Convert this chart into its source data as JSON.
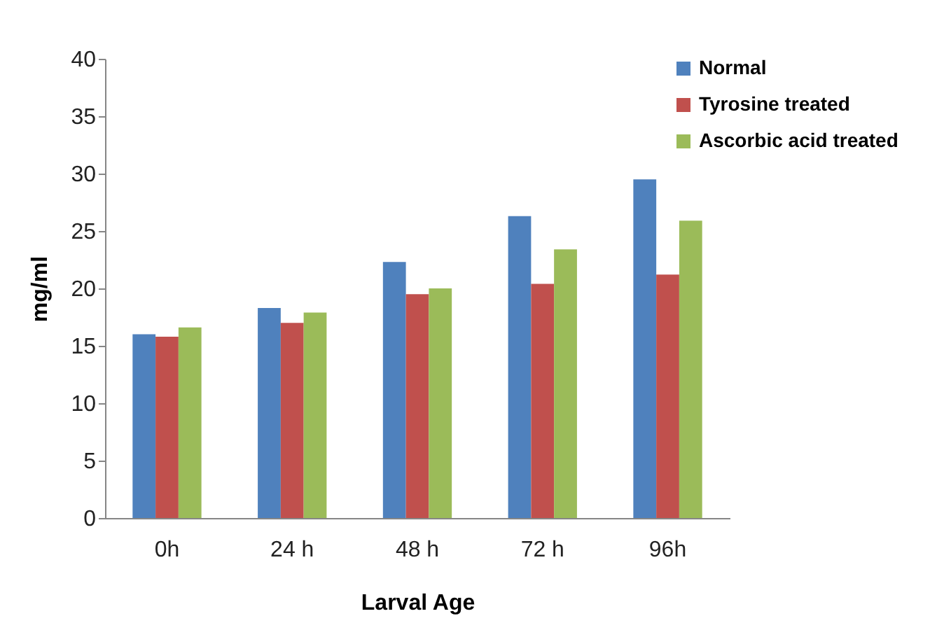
{
  "chart_data": {
    "type": "bar",
    "xlabel": "Larval Age",
    "ylabel": "mg/ml",
    "categories": [
      "0h",
      "24 h",
      "48 h",
      "72 h",
      "96h"
    ],
    "series": [
      {
        "name": "Normal",
        "color": "#4f81bd",
        "values": [
          16,
          18.3,
          22.3,
          26.3,
          29.5
        ]
      },
      {
        "name": "Tyrosine treated",
        "color": "#c0504d",
        "values": [
          15.8,
          17,
          19.5,
          20.4,
          21.2
        ]
      },
      {
        "name": "Ascorbic acid treated",
        "color": "#9bbb59",
        "values": [
          16.6,
          17.9,
          20,
          23.4,
          25.9
        ]
      }
    ],
    "ylim": [
      0,
      40
    ],
    "yticks": [
      0,
      5,
      10,
      15,
      20,
      25,
      30,
      35,
      40
    ],
    "grid": false,
    "legend": "top right"
  }
}
